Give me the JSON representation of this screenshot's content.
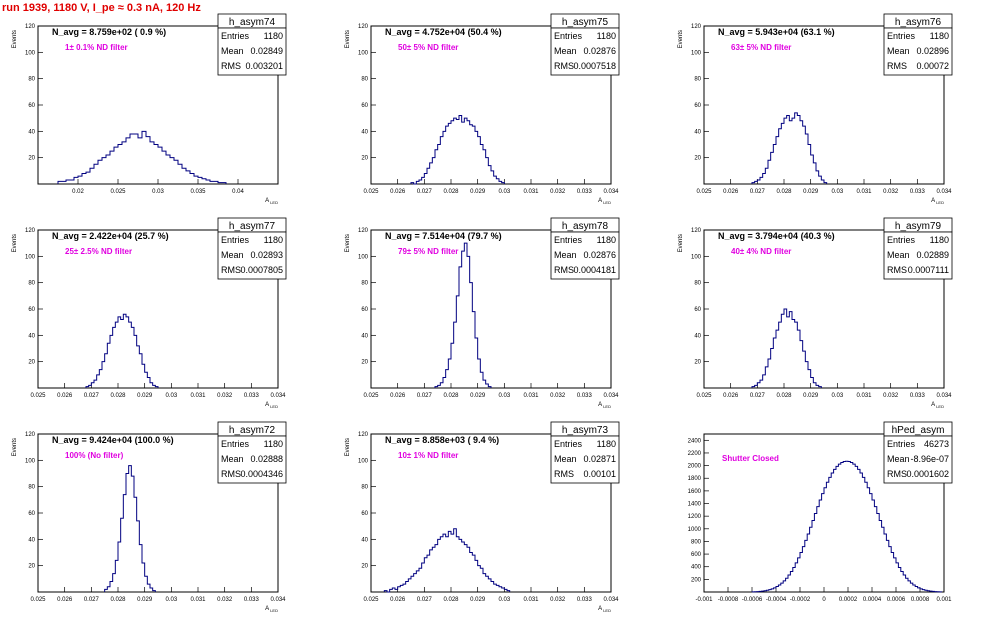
{
  "run_title": "run 1939,  1180 V, I_pe ≈ 0.3 nA, 120 Hz",
  "colors": {
    "title": "#e00000",
    "hist": "#000080",
    "annotation": "#e000e0",
    "frame": "#000000"
  },
  "chart_data": [
    {
      "type": "histogram",
      "name": "h_asym74",
      "ylabel": "Events",
      "xlabel": "A_LED",
      "navg_text": "N_avg = 8.759e+02 ( 0.9 %)",
      "annotation": "1± 0.1% ND filter",
      "stats": [
        {
          "label": "Entries",
          "value": "1180"
        },
        {
          "label": "Mean",
          "value": "0.02849"
        },
        {
          "label": "RMS",
          "value": "0.003201"
        }
      ],
      "xlim": [
        0.015,
        0.045
      ],
      "ylim": [
        0,
        120
      ],
      "xticks": [
        0.02,
        0.025,
        0.03,
        0.035,
        0.04
      ],
      "xticklabels": [
        "0.02",
        "0.025",
        "0.03",
        "0.035",
        "0.04"
      ],
      "yticks": [
        20,
        40,
        60,
        80,
        100,
        120
      ],
      "bins": {
        "start": 0.0175,
        "width": 0.0005,
        "counts": [
          2,
          2,
          3,
          3,
          5,
          6,
          8,
          9,
          12,
          15,
          18,
          20,
          22,
          25,
          28,
          30,
          32,
          35,
          38,
          38,
          35,
          40,
          36,
          32,
          30,
          28,
          25,
          22,
          20,
          18,
          15,
          12,
          10,
          8,
          6,
          5,
          4,
          3,
          2,
          2,
          1,
          1
        ]
      }
    },
    {
      "type": "histogram",
      "name": "h_asym75",
      "ylabel": "Events",
      "xlabel": "A_LED",
      "navg_text": "N_avg = 4.752e+04 (50.4 %)",
      "annotation": "50± 5% ND filter",
      "stats": [
        {
          "label": "Entries",
          "value": "1180"
        },
        {
          "label": "Mean",
          "value": "0.02876"
        },
        {
          "label": "RMS",
          "value": "0.0007518"
        }
      ],
      "xlim": [
        0.025,
        0.034
      ],
      "ylim": [
        0,
        120
      ],
      "xticks": [
        0.025,
        0.026,
        0.027,
        0.028,
        0.029,
        0.03,
        0.031,
        0.032,
        0.033,
        0.034
      ],
      "xticklabels": [
        "0.025",
        "0.026",
        "0.027",
        "0.028",
        "0.029",
        "0.03",
        "0.031",
        "0.032",
        "0.033",
        "0.034"
      ],
      "yticks": [
        20,
        40,
        60,
        80,
        100,
        120
      ],
      "bins": {
        "start": 0.0265,
        "width": 0.0001,
        "counts": [
          1,
          0,
          2,
          3,
          5,
          8,
          12,
          16,
          20,
          26,
          30,
          36,
          40,
          44,
          46,
          48,
          50,
          49,
          52,
          47,
          50,
          48,
          45,
          44,
          40,
          36,
          30,
          26,
          20,
          14,
          10,
          6,
          4,
          2,
          1
        ]
      }
    },
    {
      "type": "histogram",
      "name": "h_asym76",
      "ylabel": "Events",
      "xlabel": "A_LED",
      "navg_text": "N_avg = 5.943e+04 (63.1 %)",
      "annotation": "63± 5% ND filter",
      "stats": [
        {
          "label": "Entries",
          "value": "1180"
        },
        {
          "label": "Mean",
          "value": "0.02896"
        },
        {
          "label": "RMS",
          "value": "0.00072"
        }
      ],
      "xlim": [
        0.025,
        0.034
      ],
      "ylim": [
        0,
        120
      ],
      "xticks": [
        0.025,
        0.026,
        0.027,
        0.028,
        0.029,
        0.03,
        0.031,
        0.032,
        0.033,
        0.034
      ],
      "xticklabels": [
        "0.025",
        "0.026",
        "0.027",
        "0.028",
        "0.029",
        "0.03",
        "0.031",
        "0.032",
        "0.033",
        "0.034"
      ],
      "yticks": [
        20,
        40,
        60,
        80,
        100,
        120
      ],
      "bins": {
        "start": 0.0268,
        "width": 0.0001,
        "counts": [
          1,
          2,
          3,
          5,
          8,
          12,
          18,
          24,
          30,
          36,
          42,
          46,
          50,
          52,
          48,
          50,
          54,
          52,
          48,
          44,
          38,
          30,
          22,
          16,
          10,
          6,
          3,
          1
        ]
      }
    },
    {
      "type": "histogram",
      "name": "h_asym77",
      "ylabel": "Events",
      "xlabel": "A_LED",
      "navg_text": "N_avg = 2.422e+04 (25.7 %)",
      "annotation": "25± 2.5% ND filter",
      "stats": [
        {
          "label": "Entries",
          "value": "1180"
        },
        {
          "label": "Mean",
          "value": "0.02893"
        },
        {
          "label": "RMS",
          "value": "0.0007805"
        }
      ],
      "xlim": [
        0.025,
        0.034
      ],
      "ylim": [
        0,
        120
      ],
      "xticks": [
        0.025,
        0.026,
        0.027,
        0.028,
        0.029,
        0.03,
        0.031,
        0.032,
        0.033,
        0.034
      ],
      "xticklabels": [
        "0.025",
        "0.026",
        "0.027",
        "0.028",
        "0.029",
        "0.03",
        "0.031",
        "0.032",
        "0.033",
        "0.034"
      ],
      "yticks": [
        20,
        40,
        60,
        80,
        100,
        120
      ],
      "bins": {
        "start": 0.0268,
        "width": 0.0001,
        "counts": [
          1,
          2,
          4,
          6,
          10,
          14,
          20,
          26,
          34,
          40,
          46,
          50,
          54,
          52,
          56,
          54,
          50,
          46,
          40,
          32,
          26,
          18,
          12,
          8,
          4,
          2,
          1
        ]
      }
    },
    {
      "type": "histogram",
      "name": "h_asym78",
      "ylabel": "Events",
      "xlabel": "A_LED",
      "navg_text": "N_avg = 7.514e+04 (79.7 %)",
      "annotation": "79± 5% ND filter",
      "stats": [
        {
          "label": "Entries",
          "value": "1180"
        },
        {
          "label": "Mean",
          "value": "0.02876"
        },
        {
          "label": "RMS",
          "value": "0.0004181"
        }
      ],
      "xlim": [
        0.025,
        0.034
      ],
      "ylim": [
        0,
        120
      ],
      "xticks": [
        0.025,
        0.026,
        0.027,
        0.028,
        0.029,
        0.03,
        0.031,
        0.032,
        0.033,
        0.034
      ],
      "xticklabels": [
        "0.025",
        "0.026",
        "0.027",
        "0.028",
        "0.029",
        "0.03",
        "0.031",
        "0.032",
        "0.033",
        "0.034"
      ],
      "yticks": [
        20,
        40,
        60,
        80,
        100,
        120
      ],
      "bins": {
        "start": 0.0274,
        "width": 0.0001,
        "counts": [
          1,
          2,
          4,
          8,
          14,
          22,
          34,
          50,
          70,
          92,
          104,
          110,
          100,
          80,
          58,
          38,
          22,
          12,
          6,
          3,
          1
        ]
      }
    },
    {
      "type": "histogram",
      "name": "h_asym79",
      "ylabel": "Events",
      "xlabel": "A_LED",
      "navg_text": "N_avg = 3.794e+04 (40.3 %)",
      "annotation": "40± 4% ND filter",
      "stats": [
        {
          "label": "Entries",
          "value": "1180"
        },
        {
          "label": "Mean",
          "value": "0.02889"
        },
        {
          "label": "RMS",
          "value": "0.0007111"
        }
      ],
      "xlim": [
        0.025,
        0.034
      ],
      "ylim": [
        0,
        120
      ],
      "xticks": [
        0.025,
        0.026,
        0.027,
        0.028,
        0.029,
        0.03,
        0.031,
        0.032,
        0.033,
        0.034
      ],
      "xticklabels": [
        "0.025",
        "0.026",
        "0.027",
        "0.028",
        "0.029",
        "0.03",
        "0.031",
        "0.032",
        "0.033",
        "0.034"
      ],
      "yticks": [
        20,
        40,
        60,
        80,
        100,
        120
      ],
      "bins": {
        "start": 0.0268,
        "width": 0.0001,
        "counts": [
          1,
          2,
          4,
          6,
          10,
          16,
          22,
          30,
          38,
          44,
          50,
          56,
          60,
          54,
          58,
          52,
          50,
          44,
          36,
          28,
          20,
          14,
          8,
          4,
          2,
          1
        ]
      }
    },
    {
      "type": "histogram",
      "name": "h_asym72",
      "ylabel": "Events",
      "xlabel": "A_LED",
      "navg_text": "N_avg = 9.424e+04 (100.0 %)",
      "annotation": "100% (No filter)",
      "stats": [
        {
          "label": "Entries",
          "value": "1180"
        },
        {
          "label": "Mean",
          "value": "0.02888"
        },
        {
          "label": "RMS",
          "value": "0.0004346"
        }
      ],
      "xlim": [
        0.025,
        0.034
      ],
      "ylim": [
        0,
        120
      ],
      "xticks": [
        0.025,
        0.026,
        0.027,
        0.028,
        0.029,
        0.03,
        0.031,
        0.032,
        0.033,
        0.034
      ],
      "xticklabels": [
        "0.025",
        "0.026",
        "0.027",
        "0.028",
        "0.029",
        "0.03",
        "0.031",
        "0.032",
        "0.033",
        "0.034"
      ],
      "yticks": [
        20,
        40,
        60,
        80,
        100,
        120
      ],
      "bins": {
        "start": 0.0275,
        "width": 0.0001,
        "counts": [
          2,
          4,
          8,
          14,
          24,
          38,
          56,
          74,
          90,
          96,
          88,
          72,
          54,
          36,
          22,
          12,
          6,
          3,
          1
        ]
      }
    },
    {
      "type": "histogram",
      "name": "h_asym73",
      "ylabel": "Events",
      "xlabel": "A_LED",
      "navg_text": "N_avg = 8.858e+03 ( 9.4 %)",
      "annotation": "10± 1% ND filter",
      "stats": [
        {
          "label": "Entries",
          "value": "1180"
        },
        {
          "label": "Mean",
          "value": "0.02871"
        },
        {
          "label": "RMS",
          "value": "0.00101"
        }
      ],
      "xlim": [
        0.025,
        0.034
      ],
      "ylim": [
        0,
        120
      ],
      "xticks": [
        0.025,
        0.026,
        0.027,
        0.028,
        0.029,
        0.03,
        0.031,
        0.032,
        0.033,
        0.034
      ],
      "xticklabels": [
        "0.025",
        "0.026",
        "0.027",
        "0.028",
        "0.029",
        "0.03",
        "0.031",
        "0.032",
        "0.033",
        "0.034"
      ],
      "yticks": [
        20,
        40,
        60,
        80,
        100,
        120
      ],
      "bins": {
        "start": 0.0255,
        "width": 0.0001,
        "counts": [
          1,
          0,
          2,
          3,
          2,
          4,
          5,
          6,
          8,
          10,
          12,
          14,
          16,
          18,
          22,
          26,
          28,
          32,
          34,
          36,
          40,
          42,
          44,
          42,
          46,
          44,
          48,
          42,
          40,
          38,
          36,
          34,
          30,
          28,
          24,
          20,
          18,
          14,
          12,
          10,
          8,
          6,
          5,
          4,
          3,
          2,
          1
        ]
      }
    },
    {
      "type": "histogram",
      "name": "hPed_asym",
      "ylabel": "",
      "xlabel": "",
      "navg_text": "",
      "annotation": "Shutter Closed",
      "stats": [
        {
          "label": "Entries",
          "value": "46273"
        },
        {
          "label": "Mean",
          "value": "-8.96e-07"
        },
        {
          "label": "RMS",
          "value": "0.0001602"
        }
      ],
      "xlim": [
        -0.001,
        0.001
      ],
      "ylim": [
        0,
        2500
      ],
      "xticks": [
        -0.001,
        -0.0008,
        -0.0006,
        -0.0004,
        -0.0002,
        0,
        0.0002,
        0.0004,
        0.0006,
        0.0008,
        0.001
      ],
      "xticklabels": [
        "-0.001",
        "-0.0008",
        "-0.0006",
        "-0.0004",
        "-0.0002",
        "0",
        "0.0002",
        "0.0004",
        "0.0006",
        "0.0008",
        "0.001"
      ],
      "yticks": [
        200,
        400,
        600,
        800,
        1000,
        1200,
        1400,
        1600,
        1800,
        2000,
        2200,
        2400
      ],
      "bins": {
        "start": -0.0006,
        "width": 2e-05,
        "counts": [
          2,
          4,
          6,
          10,
          14,
          20,
          28,
          38,
          50,
          66,
          86,
          110,
          140,
          176,
          218,
          268,
          324,
          388,
          460,
          540,
          626,
          718,
          816,
          918,
          1024,
          1132,
          1242,
          1350,
          1456,
          1556,
          1650,
          1736,
          1814,
          1882,
          1940,
          1988,
          2024,
          2050,
          2064,
          2068,
          2064,
          2050,
          2024,
          1988,
          1940,
          1882,
          1814,
          1736,
          1650,
          1556,
          1456,
          1350,
          1242,
          1132,
          1024,
          918,
          816,
          718,
          626,
          540,
          460,
          388,
          324,
          268,
          218,
          176,
          140,
          110,
          86,
          66,
          50,
          38,
          28,
          20,
          14,
          10,
          6,
          4,
          2
        ]
      }
    }
  ]
}
